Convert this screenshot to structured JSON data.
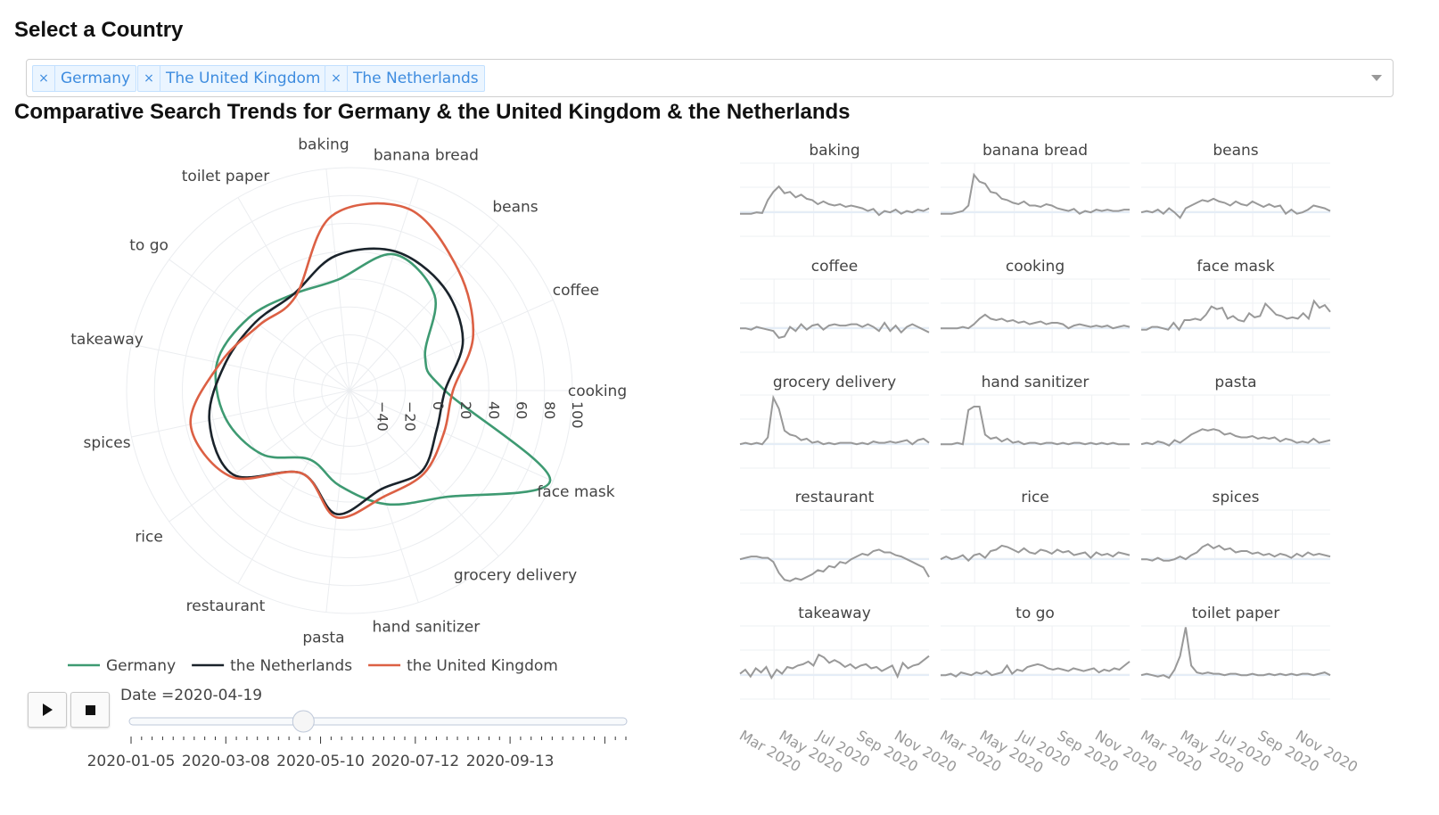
{
  "header": {
    "select_title": "Select a Country"
  },
  "country_select": {
    "selected": [
      "Germany",
      "The United Kingdom",
      "The Netherlands"
    ],
    "remove_glyph": "×"
  },
  "chart_title": "Comparative Search Trends for Germany & the United Kingdom & the Netherlands",
  "colors": {
    "Germany": "#3e9a72",
    "the Netherlands": "#1a232b",
    "the United Kingdom": "#dc6044",
    "sparkline": "#999999"
  },
  "chart_data": [
    {
      "type": "radar",
      "categories": [
        "cooking",
        "coffee",
        "beans",
        "banana bread",
        "baking",
        "toilet paper",
        "to go",
        "takeaway",
        "spices",
        "rice",
        "restaurant",
        "pasta",
        "hand sanitizer",
        "grocery delivery",
        "face mask"
      ],
      "radial_ticks": [
        "−40",
        "−20",
        "0",
        "20",
        "40",
        "60",
        "80",
        "100"
      ],
      "radial_range": [
        -40,
        100
      ],
      "series": [
        {
          "name": "Germany",
          "values": [
            20,
            12,
            40,
            50,
            30,
            30,
            38,
            45,
            40,
            28,
            10,
            20,
            35,
            50,
            98
          ]
        },
        {
          "name": "the Netherlands",
          "values": [
            20,
            38,
            48,
            52,
            45,
            30,
            33,
            40,
            50,
            50,
            20,
            38,
            25,
            28,
            20
          ]
        },
        {
          "name": "the United Kingdom",
          "values": [
            25,
            45,
            62,
            80,
            70,
            28,
            30,
            43,
            62,
            52,
            20,
            40,
            30,
            30,
            25
          ]
        }
      ],
      "legend": {
        "position": "bottom"
      }
    },
    {
      "type": "line",
      "layout": "small-multiples",
      "x_ticks": [
        "Mar 2020",
        "May 2020",
        "Jul 2020",
        "Sep 2020",
        "Nov 2020"
      ],
      "panels": [
        {
          "title": "baking",
          "values": [
            -2,
            -2,
            -2,
            0,
            -1,
            18,
            30,
            38,
            28,
            30,
            22,
            26,
            20,
            18,
            12,
            16,
            12,
            10,
            12,
            8,
            10,
            8,
            6,
            2,
            5,
            -4,
            2,
            0,
            4,
            -2,
            2,
            0,
            4,
            2,
            6
          ]
        },
        {
          "title": "banana bread",
          "values": [
            -2,
            -2,
            -2,
            0,
            2,
            10,
            55,
            45,
            42,
            30,
            28,
            20,
            18,
            14,
            12,
            16,
            10,
            10,
            8,
            12,
            10,
            6,
            4,
            2,
            5,
            -2,
            2,
            0,
            4,
            2,
            4,
            2,
            2,
            4,
            4
          ]
        },
        {
          "title": "beans",
          "values": [
            0,
            2,
            0,
            4,
            -2,
            6,
            0,
            -8,
            6,
            10,
            14,
            18,
            16,
            20,
            16,
            14,
            10,
            16,
            12,
            10,
            16,
            12,
            8,
            12,
            8,
            10,
            -2,
            4,
            -2,
            0,
            4,
            10,
            8,
            6,
            2
          ]
        },
        {
          "title": "coffee",
          "values": [
            0,
            0,
            -2,
            2,
            0,
            -2,
            -4,
            -14,
            -12,
            2,
            -4,
            6,
            -2,
            4,
            6,
            -2,
            4,
            6,
            4,
            4,
            6,
            6,
            2,
            6,
            2,
            -4,
            8,
            -4,
            4,
            -6,
            2,
            6,
            2,
            -2,
            -6
          ]
        },
        {
          "title": "cooking",
          "values": [
            0,
            0,
            0,
            0,
            2,
            0,
            6,
            14,
            20,
            14,
            12,
            14,
            10,
            12,
            8,
            10,
            6,
            8,
            10,
            6,
            8,
            8,
            6,
            0,
            4,
            6,
            4,
            2,
            4,
            2,
            4,
            0,
            2,
            4,
            2
          ]
        },
        {
          "title": "face mask",
          "values": [
            -2,
            -2,
            2,
            2,
            0,
            -2,
            8,
            -2,
            12,
            12,
            14,
            12,
            20,
            32,
            28,
            30,
            14,
            18,
            12,
            10,
            22,
            16,
            18,
            36,
            28,
            20,
            18,
            14,
            16,
            14,
            22,
            14,
            40,
            30,
            34,
            24
          ]
        },
        {
          "title": "grocery delivery",
          "values": [
            0,
            2,
            0,
            2,
            0,
            10,
            68,
            52,
            20,
            14,
            12,
            6,
            8,
            2,
            4,
            0,
            2,
            0,
            2,
            2,
            2,
            0,
            2,
            0,
            4,
            2,
            2,
            4,
            2,
            4,
            6,
            0,
            6,
            8,
            2
          ]
        },
        {
          "title": "hand sanitizer",
          "values": [
            0,
            0,
            0,
            2,
            0,
            50,
            55,
            55,
            14,
            8,
            10,
            4,
            8,
            2,
            4,
            0,
            2,
            2,
            0,
            2,
            2,
            0,
            2,
            0,
            2,
            2,
            0,
            2,
            0,
            2,
            0,
            2,
            0,
            0,
            0
          ]
        },
        {
          "title": "pasta",
          "values": [
            0,
            2,
            0,
            4,
            2,
            -2,
            6,
            2,
            8,
            14,
            18,
            22,
            20,
            22,
            20,
            14,
            16,
            12,
            10,
            10,
            12,
            8,
            10,
            8,
            10,
            4,
            8,
            6,
            2,
            4,
            2,
            8,
            2,
            4,
            6
          ]
        },
        {
          "title": "restaurant",
          "values": [
            0,
            2,
            4,
            4,
            2,
            2,
            -4,
            -20,
            -30,
            -32,
            -28,
            -30,
            -26,
            -22,
            -16,
            -18,
            -10,
            -12,
            -4,
            -6,
            0,
            4,
            8,
            6,
            12,
            14,
            10,
            10,
            6,
            4,
            0,
            -4,
            -8,
            -12,
            -26
          ]
        },
        {
          "title": "rice",
          "values": [
            0,
            4,
            0,
            2,
            6,
            -2,
            6,
            8,
            2,
            12,
            14,
            20,
            18,
            14,
            10,
            16,
            10,
            8,
            14,
            12,
            8,
            14,
            10,
            12,
            6,
            8,
            10,
            2,
            10,
            6,
            8,
            4,
            10,
            8,
            6
          ]
        },
        {
          "title": "spices",
          "values": [
            0,
            0,
            -2,
            2,
            -2,
            -2,
            0,
            4,
            0,
            6,
            10,
            18,
            22,
            16,
            20,
            14,
            16,
            10,
            12,
            12,
            8,
            10,
            6,
            8,
            4,
            8,
            6,
            2,
            8,
            4,
            10,
            6,
            8,
            6,
            4
          ]
        },
        {
          "title": "takeaway",
          "values": [
            2,
            8,
            -2,
            10,
            4,
            12,
            -4,
            8,
            2,
            12,
            10,
            14,
            16,
            20,
            14,
            30,
            26,
            18,
            22,
            18,
            12,
            16,
            10,
            14,
            16,
            10,
            12,
            6,
            10,
            14,
            -2,
            18,
            10,
            14,
            16,
            22,
            28
          ]
        },
        {
          "title": "to go",
          "values": [
            0,
            0,
            2,
            -2,
            4,
            2,
            0,
            4,
            2,
            6,
            0,
            2,
            4,
            14,
            2,
            8,
            6,
            12,
            14,
            16,
            14,
            10,
            8,
            10,
            8,
            6,
            10,
            8,
            6,
            8,
            10,
            4,
            8,
            6,
            10,
            8,
            14,
            20
          ]
        },
        {
          "title": "toilet paper",
          "values": [
            0,
            2,
            0,
            -2,
            0,
            -4,
            8,
            28,
            70,
            14,
            4,
            2,
            4,
            2,
            2,
            0,
            2,
            2,
            0,
            0,
            2,
            0,
            0,
            2,
            0,
            2,
            0,
            2,
            0,
            2,
            2,
            0,
            2,
            4,
            0
          ]
        }
      ]
    }
  ],
  "slider": {
    "current_label": "Date =2020-04-19",
    "value_fraction": 0.35,
    "tick_labels": [
      "2020-01-05",
      "2020-03-08",
      "2020-05-10",
      "2020-07-12",
      "2020-09-13"
    ],
    "tick_count": 48
  }
}
